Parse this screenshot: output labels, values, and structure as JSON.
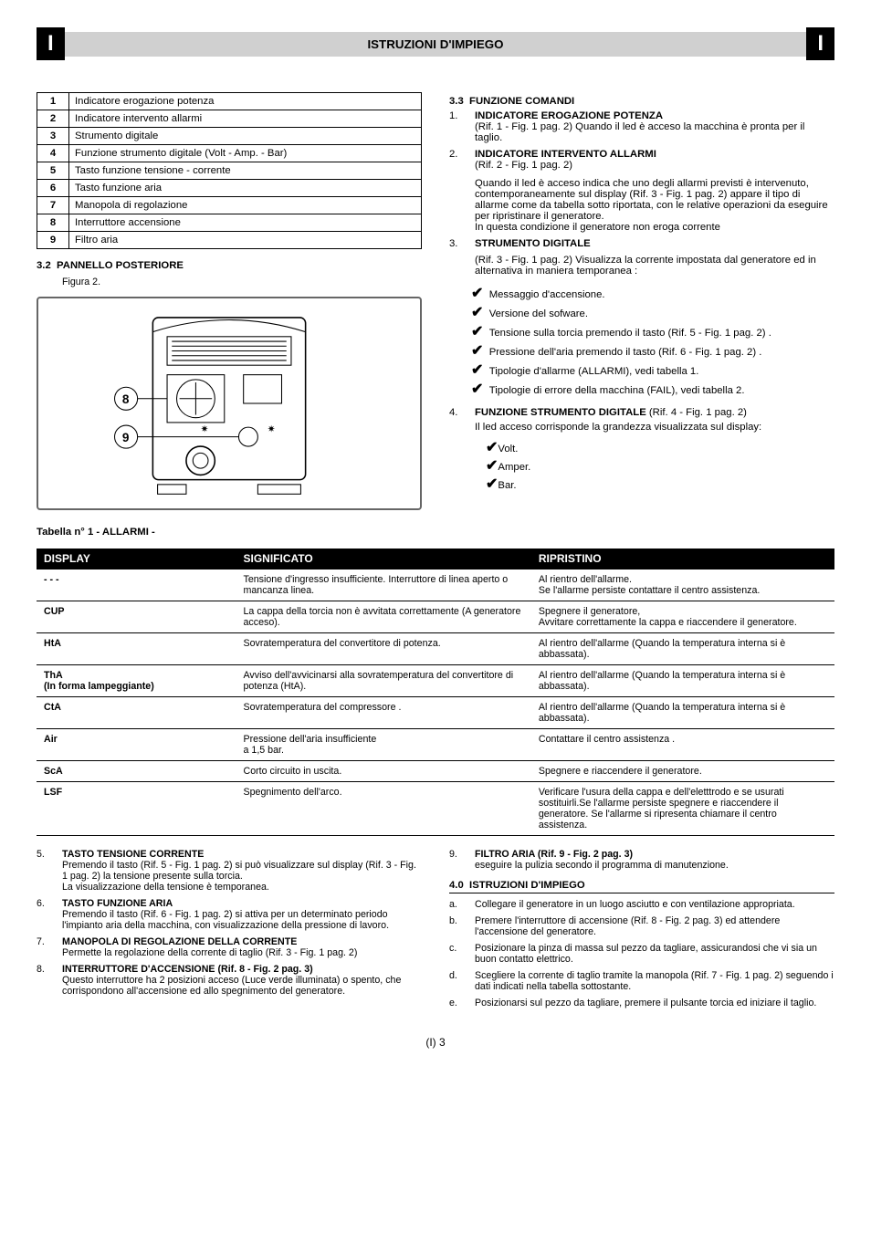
{
  "header": {
    "side_letter": "I",
    "title": "ISTRUZIONI D'IMPIEGO"
  },
  "component_table": {
    "rows": [
      [
        "1",
        "Indicatore erogazione potenza"
      ],
      [
        "2",
        "Indicatore intervento allarmi"
      ],
      [
        "3",
        "Strumento digitale"
      ],
      [
        "4",
        "Funzione strumento digitale (Volt - Amp. - Bar)"
      ],
      [
        "5",
        "Tasto funzione tensione - corrente"
      ],
      [
        "6",
        "Tasto funzione aria"
      ],
      [
        "7",
        "Manopola di regolazione"
      ],
      [
        "8",
        "Interruttore accensione"
      ],
      [
        "9",
        "Filtro aria"
      ]
    ]
  },
  "sec32": {
    "num": "3.2",
    "title": "PANNELLO POSTERIORE",
    "caption": "Figura 2."
  },
  "tabella_label": "Tabella n° 1 - ALLARMI -",
  "sec33": {
    "num": "3.3",
    "title": "FUNZIONE COMANDI",
    "item1_num": "1.",
    "item1_title": "INDICATORE EROGAZIONE POTENZA",
    "item1_body": "(Rif. 1 - Fig. 1 pag. 2) Quando il led è acceso la macchina è pronta per il taglio.",
    "item2_num": "2.",
    "item2_title": "INDICATORE INTERVENTO ALLARMI",
    "item2_sub": "(Rif. 2 - Fig. 1 pag. 2)",
    "item2_body1": "Quando il led è acceso indica che uno degli allarmi previsti è intervenuto, contemporaneamente sul display (Rif. 3 - Fig. 1 pag. 2) appare il tipo di allarme come da tabella sotto riportata, con le relative operazioni da eseguire per ripristinare il generatore.",
    "item2_body2": "In questa condizione il generatore non eroga corrente",
    "item3_num": "3.",
    "item3_title": "STRUMENTO DIGITALE",
    "item3_body": "(Rif. 3 - Fig. 1 pag. 2)  Visualizza la corrente impostata dal generatore ed in alternativa in maniera temporanea :",
    "checks": [
      "Messaggio d'accensione.",
      "Versione del sofware.",
      "Tensione sulla torcia premendo il tasto (Rif. 5 - Fig. 1 pag. 2) .",
      "Pressione dell'aria premendo il tasto (Rif. 6 - Fig. 1 pag. 2) .",
      "Tipologie d'allarme (ALLARMI), vedi tabella 1.",
      "Tipologie di errore della macchina (FAIL), vedi tabella 2."
    ],
    "item4_num": "4.",
    "item4_title": "FUNZIONE STRUMENTO DIGITALE",
    "item4_ref": "(Rif. 4 - Fig. 1 pag. 2)",
    "item4_body": "Il led acceso corrisponde la grandezza visualizzata sul display:",
    "item4_list": [
      "Volt.",
      "Amper.",
      "Bar."
    ]
  },
  "allarmi": {
    "headers": [
      "DISPLAY",
      "SIGNIFICATO",
      "RIPRISTINO"
    ],
    "rows": [
      {
        "d": "- - -",
        "s": "Tensione d'ingresso insufficiente. Interruttore di linea aperto o mancanza linea.",
        "r": "Al rientro dell'allarme.\nSe l'allarme persiste contattare il centro assistenza."
      },
      {
        "d": "CUP",
        "s": "La cappa della torcia non è avvitata correttamente (A generatore acceso).",
        "r": "Spegnere il generatore,\nAvvitare correttamente la cappa e riaccendere il generatore."
      },
      {
        "d": "HtA",
        "s": "Sovratemperatura del convertitore di potenza.",
        "r": "Al rientro dell'allarme (Quando la temperatura interna si è abbassata)."
      },
      {
        "d": "ThA\n(In forma lampeggiante)",
        "s": "Avviso dell'avvicinarsi alla sovratemperatura del convertitore di potenza (HtA).",
        "r": "Al rientro dell'allarme (Quando la temperatura interna si è abbassata)."
      },
      {
        "d": "CtA",
        "s": "Sovratemperatura del compressore .",
        "r": "Al rientro dell'allarme (Quando la temperatura interna si è abbassata)."
      },
      {
        "d": "Air",
        "s": "Pressione dell'aria insufficiente\na 1,5 bar.",
        "r": "Contattare il centro assistenza ."
      },
      {
        "d": "ScA",
        "s": "Corto circuito in uscita.",
        "r": "Spegnere e riaccendere il generatore."
      },
      {
        "d": "LSF",
        "s": "Spegnimento dell'arco.",
        "r": "Verificare l'usura della cappa e dell'eletttrodo e se usurati sostituirli.Se l'allarme persiste spegnere e riaccendere il generatore. Se l'allarme si ripresenta chiamare il centro assistenza."
      }
    ]
  },
  "bottom_left": [
    {
      "n": "5.",
      "title": "TASTO TENSIONE CORRENTE",
      "body": "Premendo il tasto (Rif. 5 - Fig. 1 pag. 2) si può visualizzare sul display (Rif. 3 - Fig. 1 pag. 2) la tensione presente sulla torcia.\nLa visualizzazione della tensione è temporanea."
    },
    {
      "n": "6.",
      "title": "TASTO FUNZIONE ARIA",
      "body": "Premendo il tasto (Rif. 6 - Fig. 1 pag. 2) si attiva per un determinato periodo l'impianto aria della macchina, con visualizzazione della pressione di lavoro."
    },
    {
      "n": "7.",
      "title": "MANOPOLA DI REGOLAZIONE DELLA CORRENTE",
      "body": "Permette la regolazione della corrente di taglio (Rif. 3 - Fig. 1 pag. 2)"
    },
    {
      "n": "8.",
      "title": "INTERRUTTORE D'ACCENSIONE (Rif. 8 - Fig. 2 pag. 3)",
      "body": "Questo interruttore ha 2 posizioni acceso (Luce verde illuminata) o spento, che corrispondono all'accensione ed allo spegnimento del generatore."
    }
  ],
  "bottom_right_top": {
    "n": "9.",
    "title": "FILTRO ARIA (Rif. 9 - Fig. 2 pag. 3)",
    "body": "eseguire la pulizia secondo il programma di manutenzione."
  },
  "sec40": {
    "num": "4.0",
    "title": "ISTRUZIONI D'IMPIEGO"
  },
  "instr_list": [
    {
      "n": "a.",
      "t": "Collegare il generatore in un luogo asciutto e con ventilazione appropriata."
    },
    {
      "n": "b.",
      "t": "Premere l'interruttore di accensione (Rif. 8 - Fig. 2 pag. 3) ed attendere l'accensione del generatore."
    },
    {
      "n": "c.",
      "t": "Posizionare la pinza di massa sul pezzo da tagliare, assicurandosi che vi sia un buon contatto elettrico."
    },
    {
      "n": "d.",
      "t": "Scegliere la corrente di taglio tramite la manopola (Rif. 7 - Fig. 1 pag. 2) seguendo i dati indicati nella tabella sottostante."
    },
    {
      "n": "e.",
      "t": "Posizionarsi sul pezzo da tagliare, premere il pulsante torcia ed iniziare il taglio."
    }
  ],
  "page": "(I) 3"
}
